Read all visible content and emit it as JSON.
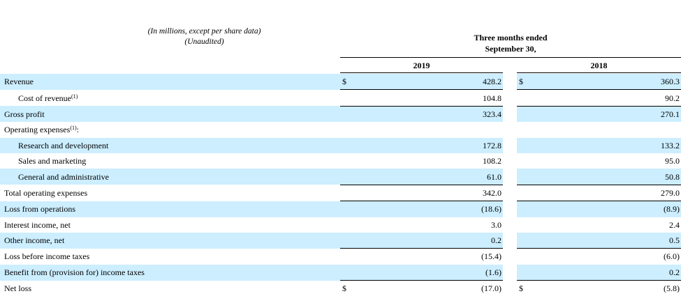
{
  "header": {
    "caption_line1": "(In millions, except per share data)",
    "caption_line2": "(Unaudited)",
    "period_line1": "Three months ended",
    "period_line2": "September 30,",
    "year_a": "2019",
    "year_b": "2018"
  },
  "rows": [
    {
      "label": "Revenue",
      "sup": "",
      "indent": false,
      "shaded": true,
      "currency": "$",
      "v2019": "428.2",
      "v2018": "360.3"
    },
    {
      "label": "Cost of revenue",
      "sup": "(1)",
      "indent": true,
      "shaded": false,
      "currency": "",
      "v2019": "104.8",
      "v2018": "90.2"
    },
    {
      "label": "Gross profit",
      "sup": "",
      "indent": false,
      "shaded": true,
      "currency": "",
      "v2019": "323.4",
      "v2018": "270.1"
    },
    {
      "label": "Operating expenses",
      "sup": "(1)",
      "suffix": ":",
      "indent": false,
      "shaded": false,
      "currency": "",
      "v2019": "",
      "v2018": ""
    },
    {
      "label": "Research and development",
      "sup": "",
      "indent": true,
      "shaded": true,
      "currency": "",
      "v2019": "172.8",
      "v2018": "133.2"
    },
    {
      "label": "Sales and marketing",
      "sup": "",
      "indent": true,
      "shaded": false,
      "currency": "",
      "v2019": "108.2",
      "v2018": "95.0"
    },
    {
      "label": "General and administrative",
      "sup": "",
      "indent": true,
      "shaded": true,
      "currency": "",
      "v2019": "61.0",
      "v2018": "50.8"
    },
    {
      "label": "Total operating expenses",
      "sup": "",
      "indent": false,
      "shaded": false,
      "currency": "",
      "v2019": "342.0",
      "v2018": "279.0"
    },
    {
      "label": "Loss from operations",
      "sup": "",
      "indent": false,
      "shaded": true,
      "currency": "",
      "v2019": "(18.6)",
      "v2018": "(8.9)"
    },
    {
      "label": "Interest income, net",
      "sup": "",
      "indent": false,
      "shaded": false,
      "currency": "",
      "v2019": "3.0",
      "v2018": "2.4"
    },
    {
      "label": "Other income, net",
      "sup": "",
      "indent": false,
      "shaded": true,
      "currency": "",
      "v2019": "0.2",
      "v2018": "0.5"
    },
    {
      "label": "Loss before income taxes",
      "sup": "",
      "indent": false,
      "shaded": false,
      "currency": "",
      "v2019": "(15.4)",
      "v2018": "(6.0)"
    },
    {
      "label": "Benefit from (provision for) income taxes",
      "sup": "",
      "indent": false,
      "shaded": true,
      "currency": "",
      "v2019": "(1.6)",
      "v2018": "0.2"
    },
    {
      "label": "Net loss",
      "sup": "",
      "indent": false,
      "shaded": false,
      "currency": "$",
      "v2019": "(17.0)",
      "v2018": "(5.8)"
    }
  ]
}
